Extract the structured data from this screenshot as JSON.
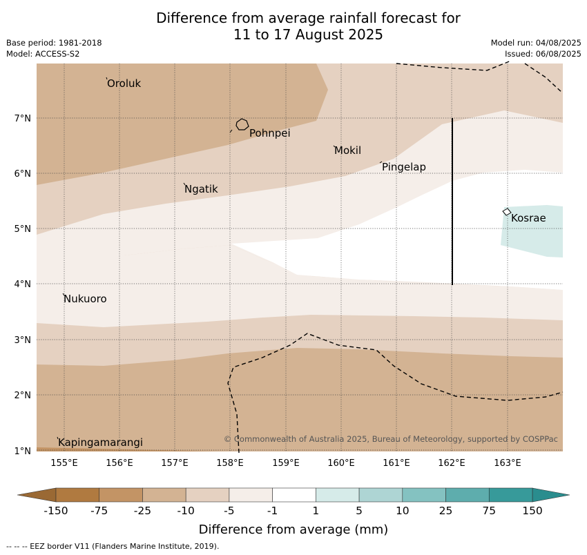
{
  "title_line1": "Difference from average rainfall forecast for",
  "title_line2": "11 to 17 August 2025",
  "base_period": "Base period: 1981-2018",
  "model": "Model: ACCESS-S2",
  "model_run": "Model run: 04/08/2025",
  "issued": "Issued: 06/08/2025",
  "longitude_ticks": [
    "155°E",
    "156°E",
    "157°E",
    "158°E",
    "159°E",
    "160°E",
    "161°E",
    "162°E",
    "163°E"
  ],
  "latitude_ticks": [
    "7°N",
    "6°N",
    "5°N",
    "4°N",
    "3°N",
    "2°N",
    "1°N"
  ],
  "places": {
    "oroluk": "Oroluk",
    "pohnpei": "Pohnpei",
    "mokil": "Mokil",
    "pingelap": "Pingelap",
    "ngatik": "Ngatik",
    "kosrae": "Kosrae",
    "nukuoro": "Nukuoro",
    "kapingamarangi": "Kapingamarangi"
  },
  "copyright": "© Commonwealth of Australia 2025, Bureau of Meteorology, supported by COSPPac",
  "colorbar": {
    "labels": [
      "-150",
      "-75",
      "-25",
      "-10",
      "-5",
      "-1",
      "1",
      "5",
      "10",
      "25",
      "75",
      "150"
    ],
    "colors": [
      "#b07a40",
      "#c39465",
      "#d3b393",
      "#e5d1c1",
      "#f5eee9",
      "#ffffff",
      "#d6ebe9",
      "#aed5d4",
      "#84c2c1",
      "#5eadad",
      "#379a9a"
    ],
    "end_low_color": "#9a6934",
    "end_high_color": "#2a8d8e",
    "title": "Difference from average (mm)"
  },
  "eez_note": "--  --  -- EEZ border V11 (Flanders Marine Institute, 2019)."
}
